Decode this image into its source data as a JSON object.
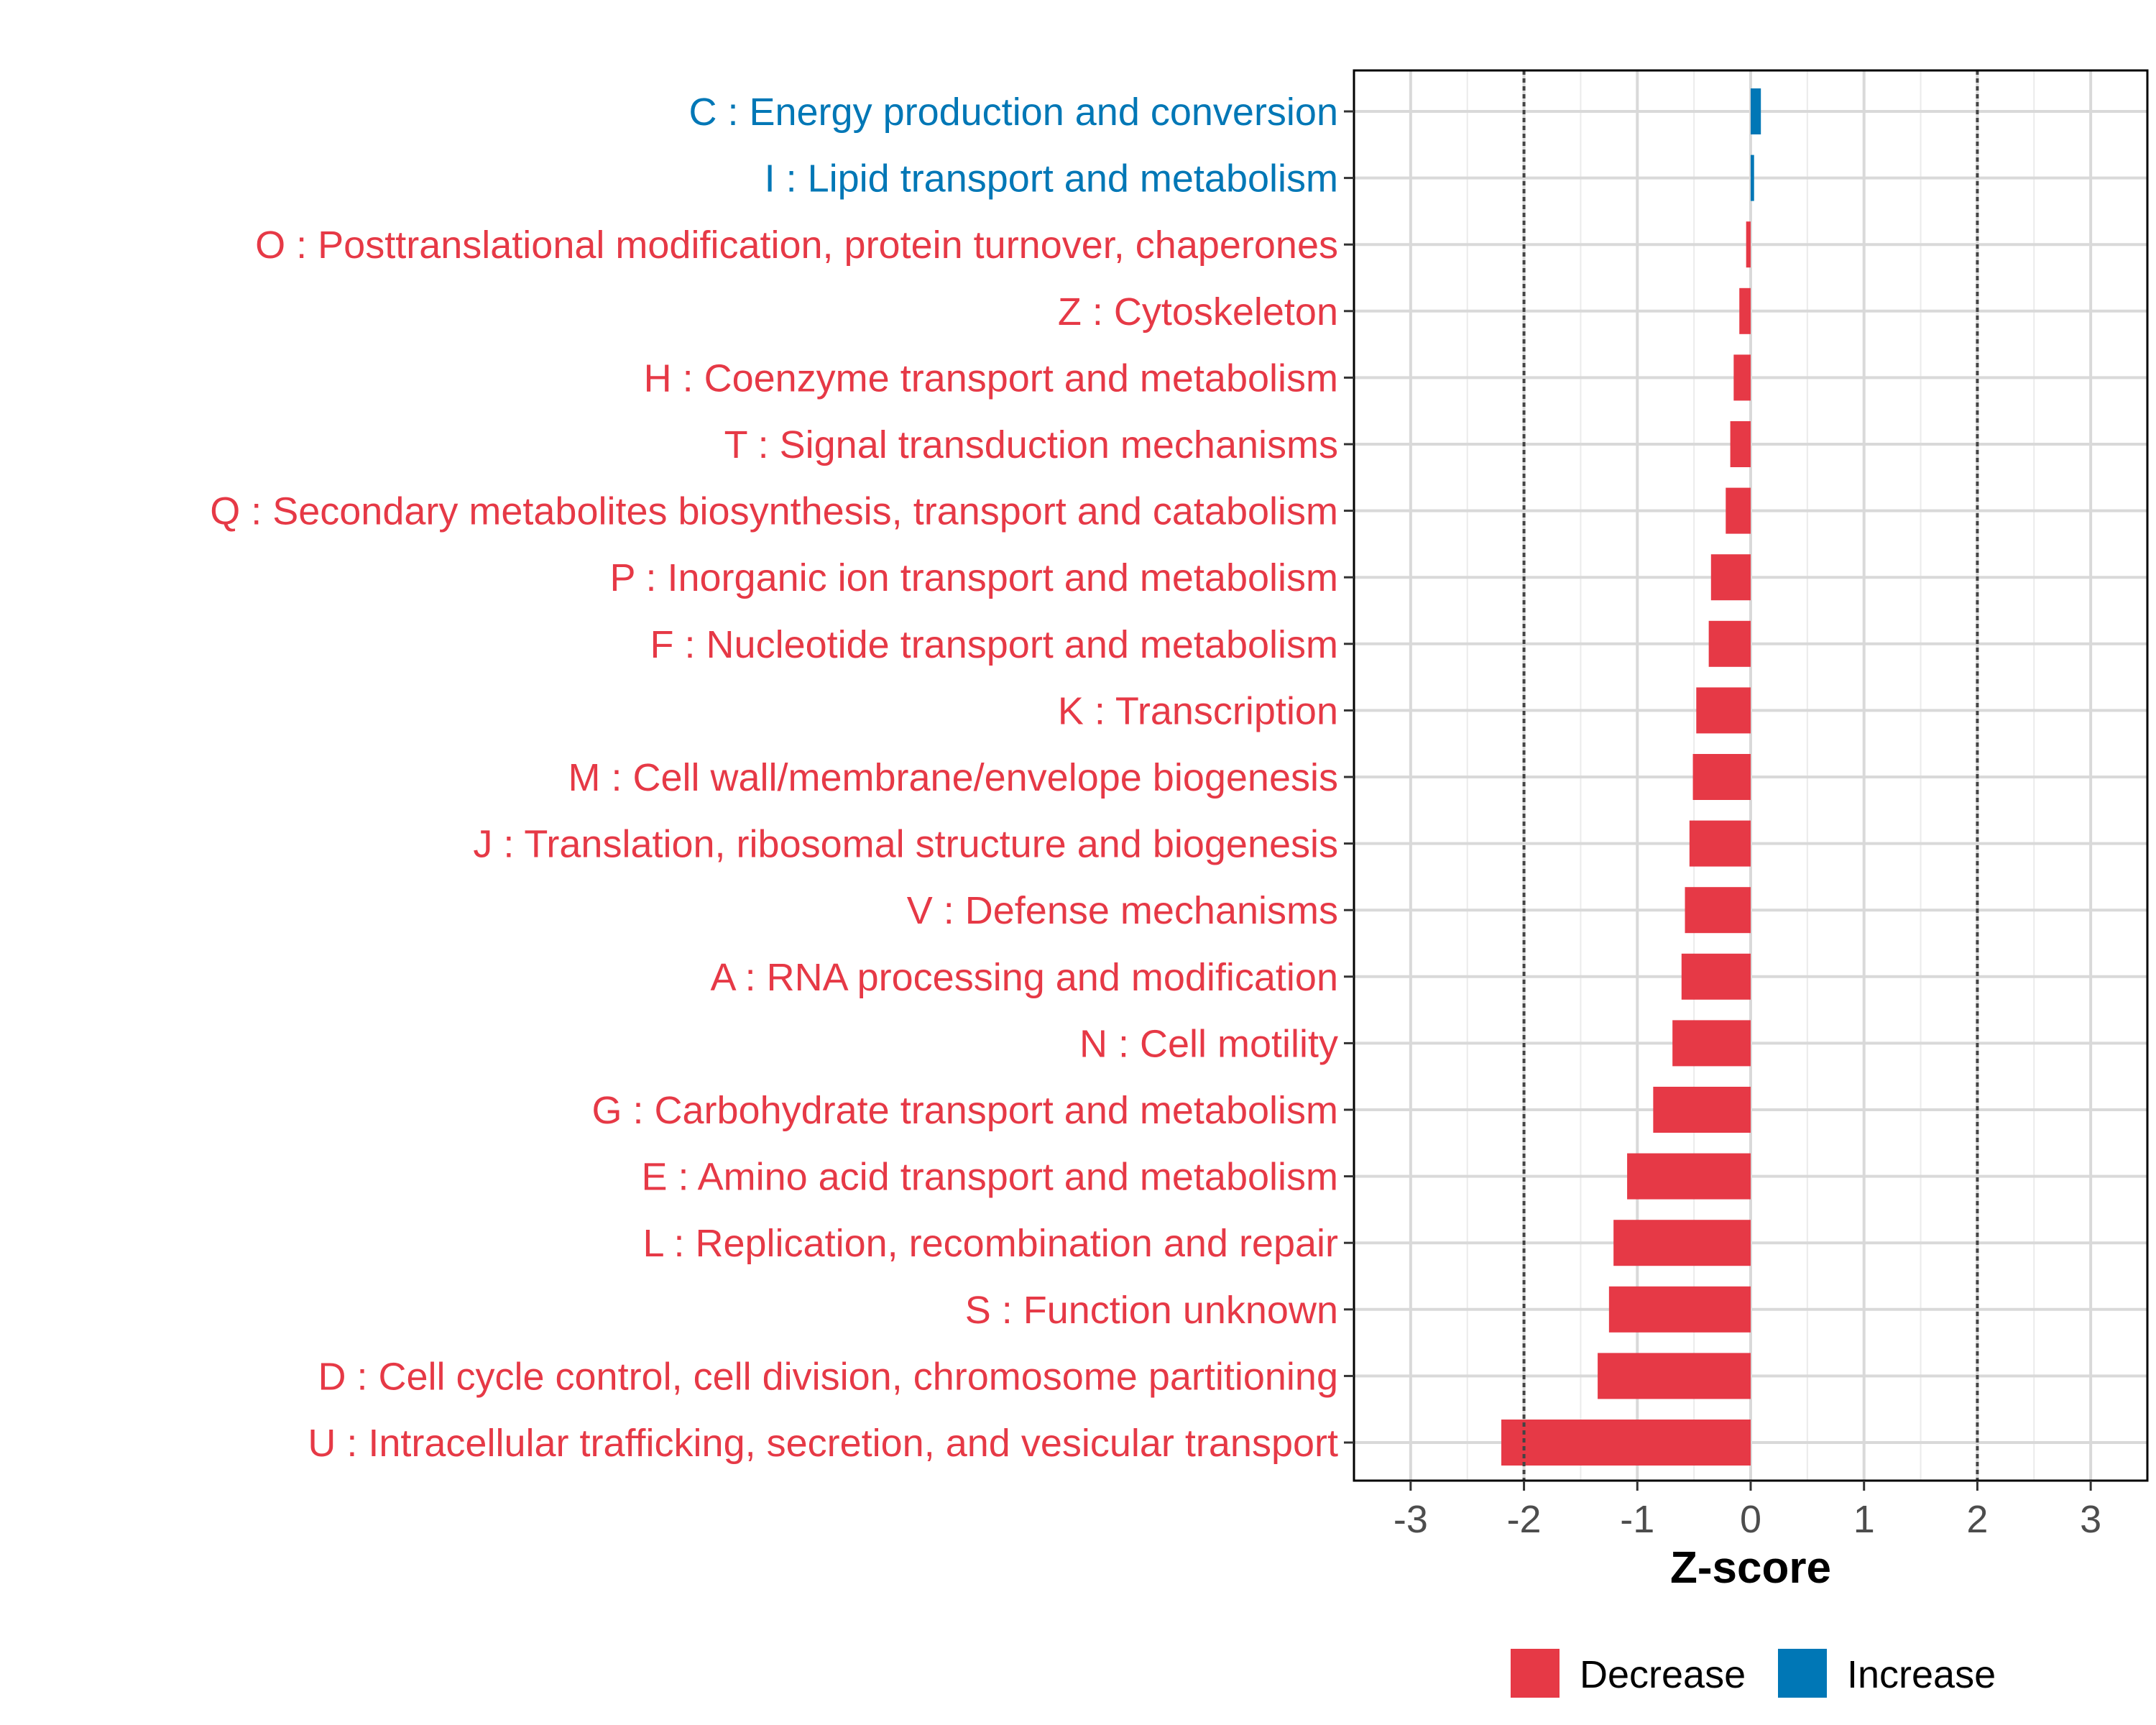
{
  "chart_data": {
    "type": "bar",
    "orientation": "horizontal",
    "xlabel": "Z-score",
    "xlim": [
      -3.5,
      3.5
    ],
    "xticks": [
      "-3",
      "-2",
      "-1",
      "0",
      "1",
      "2",
      "3"
    ],
    "xtick_values": [
      -3,
      -2,
      -1,
      0,
      1,
      2,
      3
    ],
    "reference_lines": [
      -2,
      2
    ],
    "grid": true,
    "legend_position": "bottom",
    "legend": [
      {
        "name": "Decrease",
        "color": "#E63946"
      },
      {
        "name": "Increase",
        "color": "#0077B6"
      }
    ],
    "categories": [
      "C : Energy production and conversion",
      "I : Lipid transport and metabolism",
      "O : Posttranslational modification, protein turnover, chaperones",
      "Z : Cytoskeleton",
      "H : Coenzyme transport and metabolism",
      "T : Signal transduction mechanisms",
      "Q : Secondary metabolites biosynthesis, transport and catabolism",
      "P : Inorganic ion transport and metabolism",
      "F : Nucleotide transport and metabolism",
      "K : Transcription",
      "M : Cell wall/membrane/envelope biogenesis",
      "J : Translation, ribosomal structure and biogenesis",
      "V : Defense mechanisms",
      "A : RNA processing and modification",
      "N : Cell motility",
      "G : Carbohydrate transport and metabolism",
      "E : Amino acid transport and metabolism",
      "L : Replication, recombination and repair",
      "S : Function unknown",
      "D : Cell cycle control, cell division, chromosome partitioning",
      "U : Intracellular trafficking, secretion, and vesicular transport"
    ],
    "values": [
      0.09,
      0.03,
      -0.04,
      -0.1,
      -0.15,
      -0.18,
      -0.22,
      -0.35,
      -0.37,
      -0.48,
      -0.51,
      -0.54,
      -0.58,
      -0.61,
      -0.69,
      -0.86,
      -1.09,
      -1.21,
      -1.25,
      -1.35,
      -2.2
    ],
    "groups": [
      "Increase",
      "Increase",
      "Decrease",
      "Decrease",
      "Decrease",
      "Decrease",
      "Decrease",
      "Decrease",
      "Decrease",
      "Decrease",
      "Decrease",
      "Decrease",
      "Decrease",
      "Decrease",
      "Decrease",
      "Decrease",
      "Decrease",
      "Decrease",
      "Decrease",
      "Decrease",
      "Decrease"
    ]
  }
}
